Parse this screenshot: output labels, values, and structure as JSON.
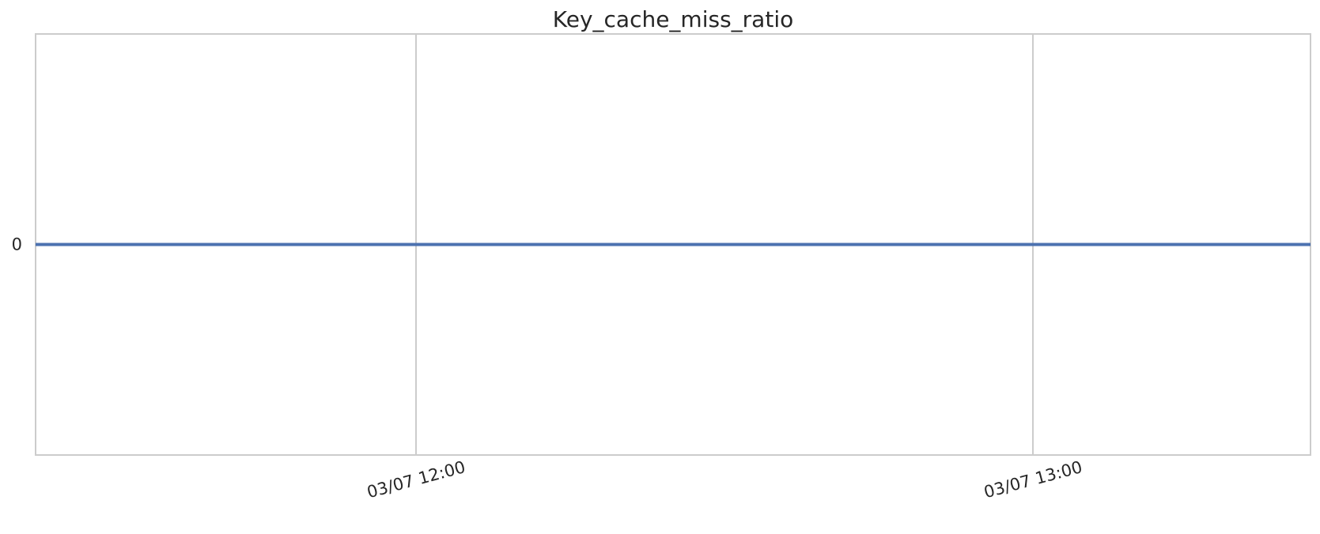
{
  "chart_data": {
    "type": "line",
    "title": "Key_cache_miss_ratio",
    "xlabel": "",
    "ylabel": "",
    "x_type": "time",
    "xlim": [
      "03/07 11:23",
      "03/07 13:27"
    ],
    "x_ticks": [
      {
        "value": "03/07 12:00",
        "label": "03/07 12:00"
      },
      {
        "value": "03/07 13:00",
        "label": "03/07 13:00"
      }
    ],
    "y_ticks": [
      {
        "value": 0,
        "label": "0"
      }
    ],
    "ylim": [
      -0.05,
      0.05
    ],
    "grid": "vertical",
    "legend": "none",
    "series": [
      {
        "color": "#4c72b0",
        "x": [
          "03/07 11:23",
          "03/07 13:27"
        ],
        "values": [
          0,
          0
        ]
      }
    ]
  }
}
